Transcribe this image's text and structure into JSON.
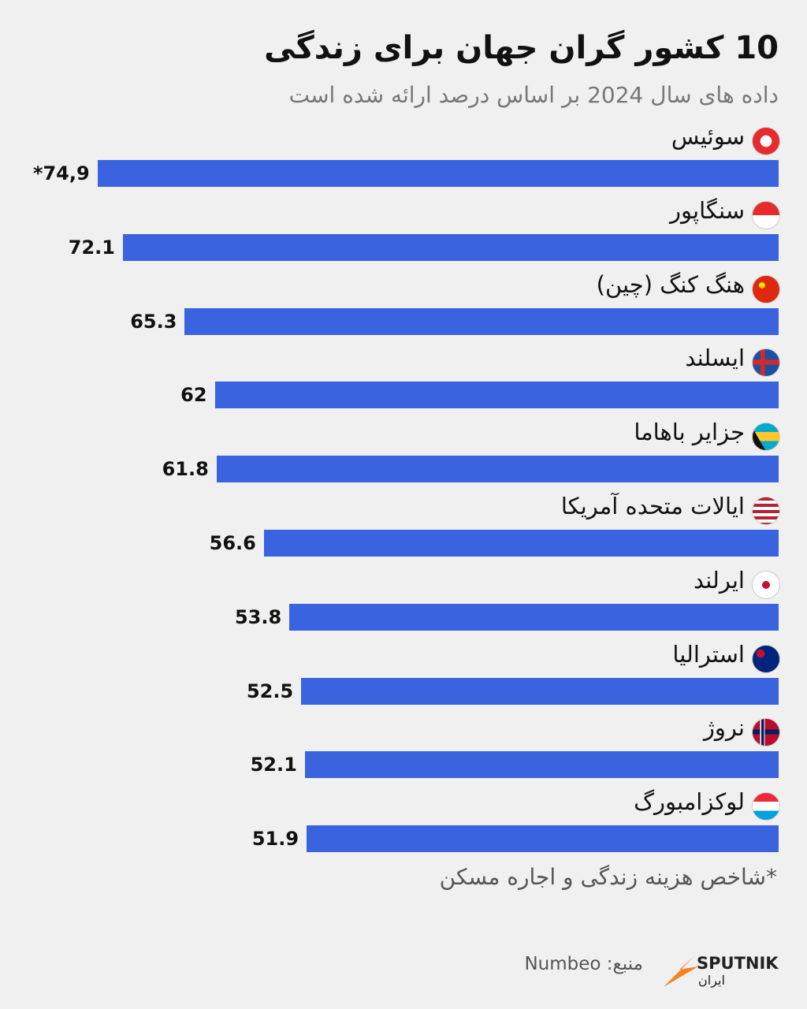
{
  "chart_data": {
    "type": "bar",
    "orientation": "horizontal",
    "title": "10 کشور گران جهان برای زندگی",
    "subtitle": "داده های سال 2024 بر اساس درصد ارائه شده است",
    "categories": [
      "سوئیس",
      "سنگاپور",
      "هنگ کنگ (چین)",
      "ایسلند",
      "جزایر باهاما",
      "ایالات متحده آمریکا",
      "ایرلند",
      "استرالیا",
      "نروژ",
      "لوکزامبورگ"
    ],
    "values": [
      74.9,
      72.1,
      65.3,
      62,
      61.8,
      56.6,
      53.8,
      52.5,
      52.1,
      51.9
    ],
    "value_labels": [
      "*74,9",
      "72.1",
      "65.3",
      "62",
      "61.8",
      "56.6",
      "53.8",
      "52.5",
      "52.1",
      "51.9"
    ],
    "color": "#3a63e0",
    "footnote": "*شاخص هزینه زندگی و اجاره مسکن",
    "source": "منبع: Numbeo",
    "logo": "SPUTNIK",
    "logo_sub": "ایران"
  }
}
